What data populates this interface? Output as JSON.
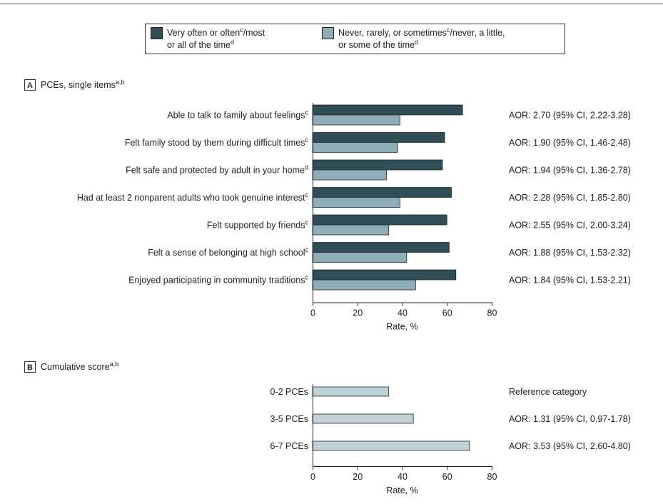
{
  "legend": {
    "items": [
      {
        "line1": "Very often or often",
        "sup1": "c",
        "mid1": "/most",
        "line2": "or all of the time",
        "sup2": "d",
        "color": "#2e4d55"
      },
      {
        "line1": "Never, rarely, or sometimes",
        "sup1": "c",
        "mid1": "/never, a little,",
        "line2": "or some of the time",
        "sup2": "d",
        "color": "#8fadb6"
      }
    ]
  },
  "chart_data": [
    {
      "type": "bar",
      "orientation": "horizontal",
      "panel_letter": "A",
      "title": "PCEs, single items",
      "title_sup": "a,b",
      "categories": [
        {
          "label": "Able to talk to family about feelings",
          "sup": "c"
        },
        {
          "label": "Felt family stood by them during difficult times",
          "sup": "c"
        },
        {
          "label": "Felt safe and protected by adult in your home",
          "sup": "d"
        },
        {
          "label": "Had at least 2 nonparent adults who took genuine interest",
          "sup": "c"
        },
        {
          "label": "Felt supported by friends",
          "sup": "c"
        },
        {
          "label": "Felt a sense of belonging at high school",
          "sup": "c"
        },
        {
          "label": "Enjoyed participating in community traditions",
          "sup": "c"
        }
      ],
      "series": [
        {
          "name": "Very often or often/most or all of the time",
          "color": "#2e4d55",
          "values": [
            67,
            59,
            58,
            62,
            60,
            61,
            64
          ]
        },
        {
          "name": "Never, rarely, or sometimes/never, a little, or some of the time",
          "color": "#8fadb6",
          "values": [
            39,
            38,
            33,
            39,
            34,
            42,
            46
          ]
        }
      ],
      "annotations": [
        "AOR: 2.70 (95% CI, 2.22-3.28)",
        "AOR: 1.90 (95% CI, 1.46-2.48)",
        "AOR: 1.94 (95% CI, 1.36-2.78)",
        "AOR: 2.28 (95% CI, 1.85-2.80)",
        "AOR: 2.55 (95% CI, 2.00-3.24)",
        "AOR: 1.88 (95% CI, 1.53-2.32)",
        "AOR: 1.84 (95% CI, 1.53-2.21)"
      ],
      "xlabel": "Rate, %",
      "xlim": [
        0,
        80
      ],
      "xticks": [
        "0",
        "20",
        "40",
        "60",
        "80"
      ],
      "grid": false
    },
    {
      "type": "bar",
      "orientation": "horizontal",
      "panel_letter": "B",
      "title": "Cumulative score",
      "title_sup": "a,b",
      "categories": [
        {
          "label": "0-2 PCEs",
          "sup": ""
        },
        {
          "label": "3-5 PCEs",
          "sup": ""
        },
        {
          "label": "6-7 PCEs",
          "sup": ""
        }
      ],
      "series": [
        {
          "color": "#bfd0d6",
          "values": [
            34,
            45,
            70
          ]
        }
      ],
      "annotations": [
        "Reference category",
        "AOR: 1.31 (95% CI, 0.97-1.78)",
        "AOR: 3.53 (95% CI, 2.60-4.80)"
      ],
      "xlabel": "Rate, %",
      "xlim": [
        0,
        80
      ],
      "xticks": [
        "0",
        "20",
        "40",
        "60",
        "80"
      ],
      "grid": false
    }
  ]
}
